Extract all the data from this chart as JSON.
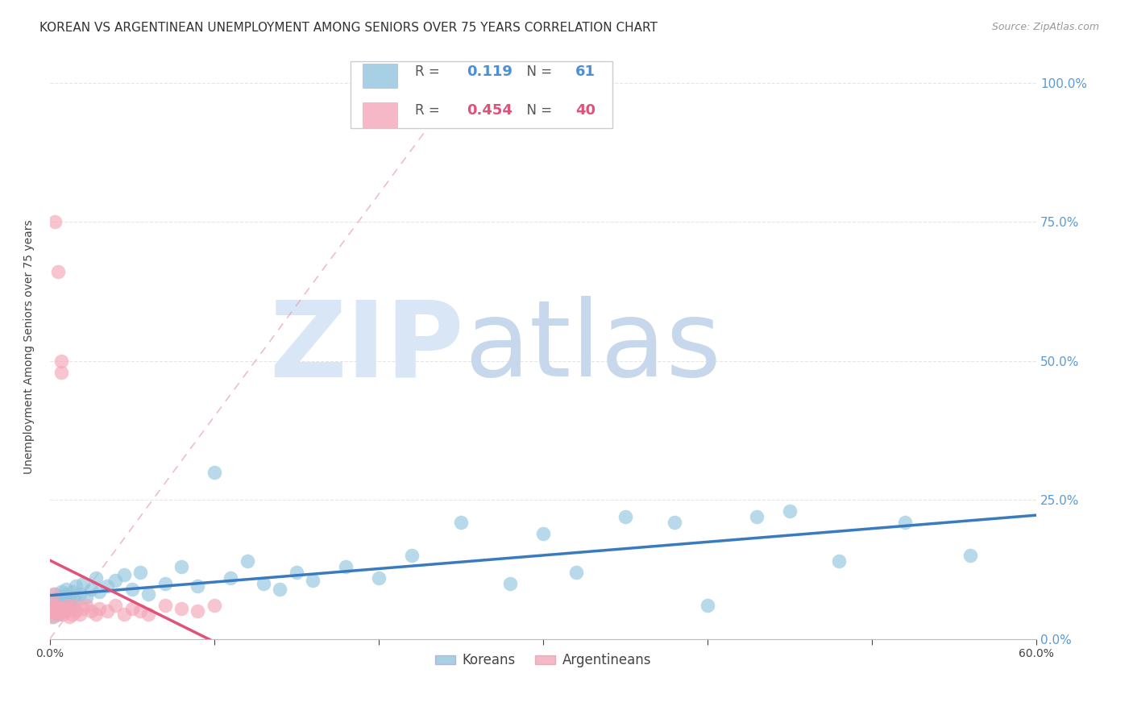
{
  "title": "KOREAN VS ARGENTINEAN UNEMPLOYMENT AMONG SENIORS OVER 75 YEARS CORRELATION CHART",
  "source": "Source: ZipAtlas.com",
  "ylabel": "Unemployment Among Seniors over 75 years",
  "xlim": [
    0.0,
    0.6
  ],
  "ylim": [
    0.0,
    1.05
  ],
  "xticks": [
    0.0,
    0.1,
    0.2,
    0.3,
    0.4,
    0.5,
    0.6
  ],
  "xticklabels": [
    "0.0%",
    "",
    "",
    "",
    "",
    "",
    "60.0%"
  ],
  "yticks_right": [
    0.0,
    0.25,
    0.5,
    0.75,
    1.0
  ],
  "yticklabels_right": [
    "0.0%",
    "25.0%",
    "50.0%",
    "75.0%",
    "100.0%"
  ],
  "korean_R": 0.119,
  "korean_N": 61,
  "arg_R": 0.454,
  "arg_N": 40,
  "korean_color": "#92c5de",
  "arg_color": "#f4a6b8",
  "korean_line_color": "#3a7abf",
  "arg_line_color": "#e0527a",
  "watermark_zip": "ZIP",
  "watermark_atlas": "atlas",
  "watermark_color": "#d0dff0",
  "legend_korean_label": "Koreans",
  "legend_arg_label": "Argentineans",
  "korean_x": [
    0.0,
    0.001,
    0.002,
    0.003,
    0.003,
    0.004,
    0.004,
    0.005,
    0.005,
    0.006,
    0.006,
    0.007,
    0.007,
    0.008,
    0.008,
    0.009,
    0.01,
    0.01,
    0.011,
    0.012,
    0.013,
    0.014,
    0.015,
    0.016,
    0.018,
    0.02,
    0.022,
    0.025,
    0.028,
    0.03,
    0.035,
    0.04,
    0.045,
    0.05,
    0.055,
    0.06,
    0.07,
    0.08,
    0.09,
    0.1,
    0.11,
    0.12,
    0.13,
    0.14,
    0.15,
    0.16,
    0.18,
    0.2,
    0.22,
    0.25,
    0.28,
    0.3,
    0.32,
    0.35,
    0.38,
    0.4,
    0.43,
    0.45,
    0.48,
    0.52,
    0.56
  ],
  "korean_y": [
    0.05,
    0.055,
    0.04,
    0.06,
    0.08,
    0.05,
    0.07,
    0.06,
    0.045,
    0.075,
    0.055,
    0.065,
    0.085,
    0.05,
    0.07,
    0.06,
    0.08,
    0.09,
    0.065,
    0.075,
    0.06,
    0.085,
    0.07,
    0.095,
    0.08,
    0.1,
    0.075,
    0.09,
    0.11,
    0.085,
    0.095,
    0.105,
    0.115,
    0.09,
    0.12,
    0.08,
    0.1,
    0.13,
    0.095,
    0.3,
    0.11,
    0.14,
    0.1,
    0.09,
    0.12,
    0.105,
    0.13,
    0.11,
    0.15,
    0.21,
    0.1,
    0.19,
    0.12,
    0.22,
    0.21,
    0.06,
    0.22,
    0.23,
    0.14,
    0.21,
    0.15
  ],
  "arg_x": [
    0.0,
    0.001,
    0.001,
    0.002,
    0.002,
    0.003,
    0.003,
    0.004,
    0.004,
    0.005,
    0.005,
    0.006,
    0.006,
    0.007,
    0.007,
    0.008,
    0.009,
    0.01,
    0.011,
    0.012,
    0.013,
    0.014,
    0.015,
    0.016,
    0.018,
    0.02,
    0.022,
    0.025,
    0.028,
    0.03,
    0.035,
    0.04,
    0.045,
    0.05,
    0.055,
    0.06,
    0.07,
    0.08,
    0.09,
    0.1
  ],
  "arg_y": [
    0.05,
    0.055,
    0.04,
    0.06,
    0.08,
    0.05,
    0.75,
    0.055,
    0.06,
    0.045,
    0.66,
    0.055,
    0.05,
    0.48,
    0.5,
    0.045,
    0.055,
    0.05,
    0.06,
    0.04,
    0.055,
    0.045,
    0.06,
    0.05,
    0.045,
    0.055,
    0.06,
    0.05,
    0.045,
    0.055,
    0.05,
    0.06,
    0.045,
    0.055,
    0.05,
    0.045,
    0.06,
    0.055,
    0.05,
    0.06
  ],
  "background_color": "#ffffff",
  "grid_color": "#e0e0e0"
}
